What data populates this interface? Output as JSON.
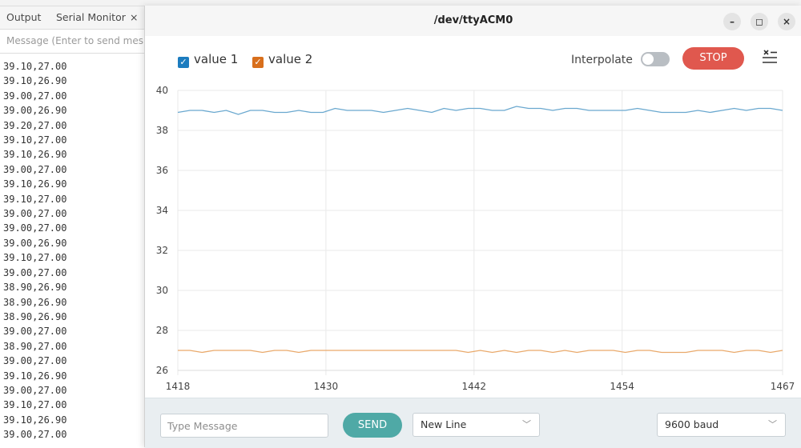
{
  "ide": {
    "tabs": [
      "Output",
      "Serial Monitor"
    ],
    "message_placeholder": "Message (Enter to send mes",
    "log": [
      "39.10,27.00",
      "39.10,26.90",
      "39.00,27.00",
      "39.00,26.90",
      "39.20,27.00",
      "39.10,27.00",
      "39.10,26.90",
      "39.00,27.00",
      "39.10,26.90",
      "39.10,27.00",
      "39.00,27.00",
      "39.00,27.00",
      "39.00,26.90",
      "39.10,27.00",
      "39.00,27.00",
      "38.90,26.90",
      "38.90,26.90",
      "38.90,26.90",
      "39.00,27.00",
      "38.90,27.00",
      "39.00,27.00",
      "39.10,26.90",
      "39.00,27.00",
      "39.10,27.00",
      "39.10,26.90",
      "39.00,27.00"
    ]
  },
  "window": {
    "title": "/dev/ttyACM0",
    "minimize_label": "–",
    "maximize_label": "◻",
    "close_label": "×"
  },
  "controls": {
    "interpolate_label": "Interpolate",
    "interpolate_on": false,
    "stop_label": "STOP",
    "clear_icon": "clear-list-icon"
  },
  "bottom": {
    "message_placeholder": "Type Message",
    "send_label": "SEND",
    "line_ending": "New Line",
    "baud": "9600 baud"
  },
  "colors": {
    "value1": "#1c7cbf",
    "value2": "#d86f1c",
    "line1": "#6aa8cf",
    "line2": "#e9a96b",
    "stop": "#e0584e",
    "send": "#4fa9a6"
  },
  "chart_data": {
    "type": "line",
    "x_range": [
      1418,
      1467
    ],
    "ylim": [
      26,
      40
    ],
    "yticks": [
      26,
      28,
      30,
      32,
      34,
      36,
      38,
      40
    ],
    "xticks": [
      1418,
      1430,
      1442,
      1454,
      1467
    ],
    "legend_placement": "top-left",
    "grid": true,
    "series": [
      {
        "name": "value 1",
        "checked": true,
        "values": [
          38.9,
          39.0,
          39.0,
          38.9,
          39.0,
          38.8,
          39.0,
          39.0,
          38.9,
          38.9,
          39.0,
          38.9,
          38.9,
          39.1,
          39.0,
          39.0,
          39.0,
          38.9,
          39.0,
          39.1,
          39.0,
          38.9,
          39.1,
          39.0,
          39.1,
          39.1,
          39.0,
          39.0,
          39.2,
          39.1,
          39.1,
          39.0,
          39.1,
          39.1,
          39.0,
          39.0,
          39.0,
          39.0,
          39.1,
          39.0,
          38.9,
          38.9,
          38.9,
          39.0,
          38.9,
          39.0,
          39.1,
          39.0,
          39.1,
          39.1,
          39.0
        ]
      },
      {
        "name": "value 2",
        "checked": true,
        "values": [
          27.0,
          27.0,
          26.9,
          27.0,
          27.0,
          27.0,
          27.0,
          26.9,
          27.0,
          27.0,
          26.9,
          27.0,
          27.0,
          27.0,
          27.0,
          27.0,
          27.0,
          27.0,
          27.0,
          27.0,
          27.0,
          27.0,
          27.0,
          27.0,
          26.9,
          27.0,
          26.9,
          27.0,
          26.9,
          27.0,
          27.0,
          26.9,
          27.0,
          26.9,
          27.0,
          27.0,
          27.0,
          26.9,
          27.0,
          27.0,
          26.9,
          26.9,
          26.9,
          27.0,
          27.0,
          27.0,
          26.9,
          27.0,
          27.0,
          26.9,
          27.0
        ]
      }
    ]
  }
}
